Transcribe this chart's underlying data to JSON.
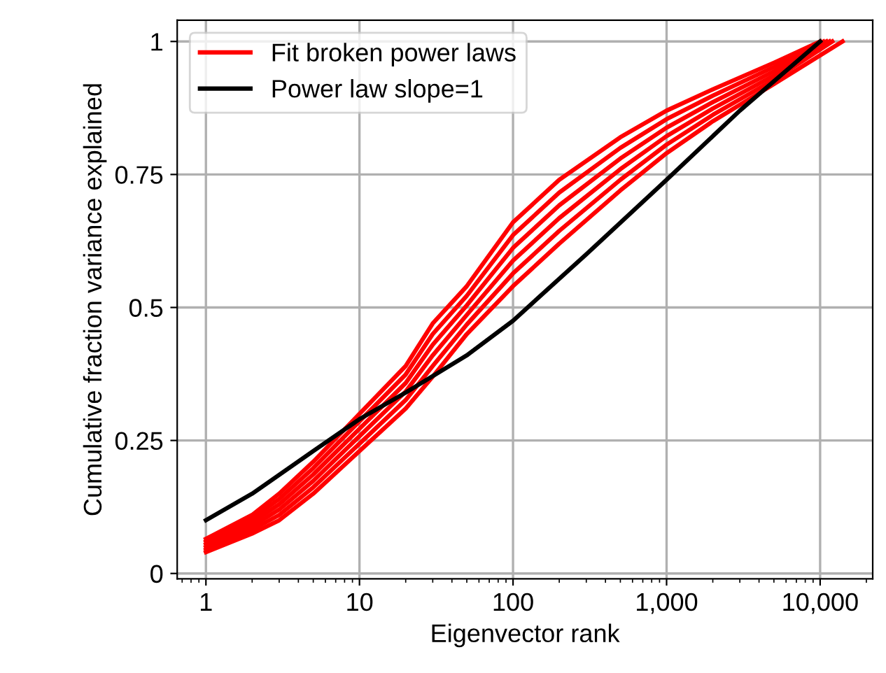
{
  "chart_data": {
    "type": "line",
    "xlabel": "Eigenvector rank",
    "ylabel": "Cumulative fraction variance explained",
    "log": "x",
    "grid": true,
    "legend": "top left",
    "line_style": "solid",
    "marker": "none",
    "xlim": [
      0.65,
      22000
    ],
    "xticks": [
      1,
      10,
      100,
      {
        "value": 1000,
        "label": "1,000"
      },
      {
        "value": 10000,
        "label": "10,000"
      }
    ],
    "ylim": [
      -0.01,
      1.04
    ],
    "yticks": [
      0,
      0.25,
      0.5,
      0.75,
      1
    ],
    "series": [
      {
        "name": "Fit broken power laws",
        "color": "#ff0000",
        "x": [
          1,
          2,
          3,
          5,
          10,
          20,
          30,
          50,
          100,
          200,
          500,
          1000,
          2000,
          5000,
          10000
        ],
        "values": [
          0.065,
          0.11,
          0.15,
          0.21,
          0.3,
          0.39,
          0.47,
          0.54,
          0.66,
          0.74,
          0.82,
          0.87,
          0.91,
          0.96,
          1
        ]
      },
      {
        "color": "#ff0000",
        "x": [
          1,
          2,
          3,
          5,
          10,
          20,
          30,
          50,
          100,
          200,
          500,
          1000,
          2000,
          5000,
          10500
        ],
        "values": [
          0.06,
          0.103,
          0.14,
          0.198,
          0.286,
          0.374,
          0.45,
          0.522,
          0.636,
          0.716,
          0.8,
          0.854,
          0.898,
          0.952,
          1
        ]
      },
      {
        "color": "#ff0000",
        "x": [
          1,
          2,
          3,
          5,
          10,
          20,
          30,
          50,
          100,
          200,
          500,
          1000,
          2000,
          5000,
          11000
        ],
        "values": [
          0.055,
          0.096,
          0.13,
          0.186,
          0.272,
          0.358,
          0.43,
          0.504,
          0.612,
          0.692,
          0.78,
          0.838,
          0.886,
          0.944,
          1
        ]
      },
      {
        "color": "#ff0000",
        "x": [
          1,
          2,
          3,
          5,
          10,
          20,
          30,
          50,
          100,
          200,
          500,
          1000,
          2000,
          5000,
          11500
        ],
        "values": [
          0.05,
          0.089,
          0.12,
          0.174,
          0.258,
          0.342,
          0.41,
          0.486,
          0.588,
          0.668,
          0.76,
          0.822,
          0.874,
          0.936,
          1
        ]
      },
      {
        "color": "#ff0000",
        "x": [
          1,
          2,
          3,
          5,
          10,
          20,
          30,
          50,
          100,
          200,
          500,
          1000,
          2000,
          5000,
          12000
        ],
        "values": [
          0.045,
          0.082,
          0.11,
          0.162,
          0.244,
          0.326,
          0.39,
          0.468,
          0.564,
          0.644,
          0.74,
          0.806,
          0.862,
          0.928,
          1
        ]
      },
      {
        "color": "#ff0000",
        "x": [
          1,
          2,
          3,
          5,
          10,
          20,
          30,
          50,
          100,
          200,
          500,
          1000,
          2000,
          5000,
          14000
        ],
        "values": [
          0.04,
          0.075,
          0.1,
          0.15,
          0.23,
          0.31,
          0.37,
          0.45,
          0.54,
          0.62,
          0.72,
          0.79,
          0.85,
          0.92,
          1
        ]
      },
      {
        "name": "Power law slope=1",
        "color": "#000000",
        "x": [
          1,
          2,
          5,
          10,
          20,
          50,
          100,
          300,
          1000,
          3000,
          10000
        ],
        "values": [
          0.1,
          0.15,
          0.23,
          0.29,
          0.34,
          0.41,
          0.475,
          0.6,
          0.74,
          0.87,
          1.0
        ]
      }
    ]
  }
}
